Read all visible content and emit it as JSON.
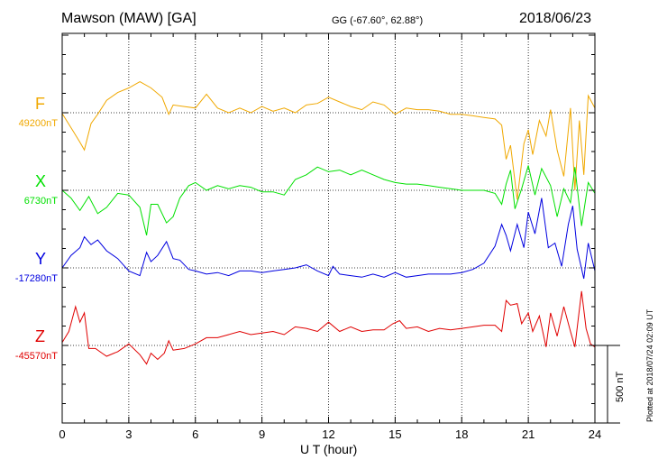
{
  "header": {
    "station": "Mawson (MAW)  [GA]",
    "coords": "GG (-67.60°,  62.88°)",
    "date": "2018/06/23"
  },
  "footer_note": "Plotted at 2018/07/24 02:09 UT",
  "scale_bar": {
    "label": "500 nT",
    "value_nT": 500
  },
  "colors": {
    "F": "#f0a800",
    "X": "#00e000",
    "Y": "#0000e0",
    "Z": "#e00000",
    "axis": "#000000"
  },
  "chart_data": {
    "type": "line",
    "title": "Mawson (MAW)  [GA]",
    "xlabel": "U T (hour)",
    "ylabel": "",
    "xlim": [
      0,
      24
    ],
    "x_ticks": [
      0,
      3,
      6,
      9,
      12,
      15,
      18,
      21,
      24
    ],
    "x_tick_labels": [
      "0",
      "3",
      "6",
      "9",
      "12",
      "15",
      "18",
      "21",
      "24"
    ],
    "grid": true,
    "nT_per_division": 500,
    "series": [
      {
        "name": "F",
        "baseline_label": "49200nT",
        "baseline_nT": 49200,
        "x": [
          0,
          0.5,
          0.8,
          1,
          1.3,
          1.6,
          2,
          2.5,
          3,
          3.5,
          4,
          4.5,
          4.8,
          5,
          5.5,
          6,
          6.5,
          7,
          7.5,
          8,
          8.5,
          9,
          9.5,
          10,
          10.5,
          11,
          11.5,
          12,
          12.5,
          13,
          13.5,
          14,
          14.5,
          15,
          15.5,
          16,
          16.5,
          17,
          17.5,
          18,
          18.5,
          19,
          19.5,
          19.8,
          20,
          20.2,
          20.5,
          20.8,
          21,
          21.2,
          21.5,
          21.8,
          22,
          22.3,
          22.6,
          22.9,
          23.1,
          23.3,
          23.5,
          23.7,
          24
        ],
        "y": [
          49195,
          49080,
          49010,
          48960,
          49130,
          49190,
          49280,
          49330,
          49360,
          49400,
          49360,
          49300,
          49190,
          49250,
          49240,
          49230,
          49320,
          49230,
          49200,
          49230,
          49200,
          49240,
          49210,
          49230,
          49200,
          49250,
          49260,
          49300,
          49270,
          49240,
          49220,
          49270,
          49250,
          49190,
          49230,
          49220,
          49220,
          49210,
          49190,
          49190,
          49180,
          49170,
          49160,
          49120,
          48900,
          48990,
          48640,
          49000,
          49090,
          48930,
          49150,
          49050,
          49220,
          48960,
          48790,
          49230,
          48700,
          49150,
          48800,
          49310,
          49230
        ]
      },
      {
        "name": "X",
        "baseline_label": "6730nT",
        "baseline_nT": 6730,
        "x": [
          0,
          0.4,
          0.8,
          1.2,
          1.6,
          2,
          2.5,
          3,
          3.5,
          3.8,
          4,
          4.3,
          4.7,
          5,
          5.3,
          5.7,
          6,
          6.5,
          7,
          7.5,
          8,
          8.5,
          9,
          9.5,
          10,
          10.5,
          11,
          11.5,
          12,
          12.5,
          13,
          13.5,
          14,
          14.5,
          15,
          15.5,
          16,
          16.5,
          17,
          17.5,
          18,
          18.5,
          19,
          19.5,
          19.8,
          20,
          20.2,
          20.4,
          20.7,
          21,
          21.3,
          21.6,
          22,
          22.3,
          22.6,
          22.9,
          23.1,
          23.4,
          23.7,
          24
        ],
        "y": [
          6730,
          6680,
          6600,
          6690,
          6580,
          6620,
          6710,
          6700,
          6620,
          6440,
          6640,
          6640,
          6520,
          6560,
          6680,
          6760,
          6780,
          6730,
          6760,
          6740,
          6760,
          6750,
          6720,
          6720,
          6700,
          6800,
          6830,
          6880,
          6850,
          6860,
          6830,
          6860,
          6830,
          6800,
          6780,
          6770,
          6770,
          6760,
          6750,
          6740,
          6730,
          6730,
          6730,
          6710,
          6640,
          6770,
          6860,
          6610,
          6740,
          6890,
          6700,
          6870,
          6760,
          6560,
          6740,
          6650,
          6880,
          6500,
          6780,
          6710
        ]
      },
      {
        "name": "Y",
        "baseline_label": "-17280nT",
        "baseline_nT": -17280,
        "x": [
          0,
          0.4,
          0.8,
          1,
          1.3,
          1.6,
          2,
          2.5,
          3,
          3.5,
          3.8,
          4,
          4.3,
          4.7,
          5,
          5.3,
          5.7,
          6,
          6.5,
          7,
          7.5,
          8,
          8.5,
          9,
          9.5,
          10,
          10.5,
          11,
          11.5,
          12,
          12.2,
          12.5,
          13,
          13.5,
          14,
          14.5,
          15,
          15.5,
          16,
          16.5,
          17,
          17.5,
          18,
          18.5,
          19,
          19.5,
          19.8,
          20,
          20.2,
          20.5,
          20.8,
          21,
          21.3,
          21.6,
          21.9,
          22.2,
          22.5,
          22.8,
          23,
          23.2,
          23.5,
          23.7,
          24
        ],
        "y": [
          -17280,
          -17200,
          -17150,
          -17080,
          -17130,
          -17100,
          -17170,
          -17220,
          -17300,
          -17330,
          -17180,
          -17240,
          -17200,
          -17110,
          -17220,
          -17230,
          -17290,
          -17300,
          -17320,
          -17310,
          -17330,
          -17300,
          -17300,
          -17310,
          -17300,
          -17290,
          -17280,
          -17260,
          -17300,
          -17330,
          -17270,
          -17320,
          -17330,
          -17340,
          -17320,
          -17340,
          -17310,
          -17340,
          -17330,
          -17320,
          -17320,
          -17320,
          -17310,
          -17290,
          -17250,
          -17140,
          -17000,
          -17070,
          -17170,
          -17000,
          -17150,
          -16920,
          -17060,
          -16830,
          -17150,
          -17120,
          -17270,
          -17000,
          -16880,
          -17160,
          -17350,
          -17120,
          -17300
        ]
      },
      {
        "name": "Z",
        "baseline_label": "-45570nT",
        "baseline_nT": -45570,
        "x": [
          0,
          0.3,
          0.6,
          0.8,
          1,
          1.2,
          1.5,
          1.8,
          2,
          2.5,
          3,
          3.5,
          3.8,
          4,
          4.3,
          4.6,
          4.8,
          5,
          5.5,
          6,
          6.5,
          7,
          7.5,
          8,
          8.5,
          9,
          9.5,
          10,
          10.5,
          11,
          11.5,
          12,
          12.5,
          13,
          13.5,
          14,
          14.5,
          14.9,
          15.2,
          15.5,
          16,
          16.5,
          17,
          17.5,
          18,
          18.5,
          19,
          19.5,
          19.8,
          20,
          20.2,
          20.5,
          20.7,
          21,
          21.2,
          21.5,
          21.8,
          22,
          22.3,
          22.6,
          22.9,
          23.1,
          23.4,
          23.6,
          23.8,
          24
        ],
        "y": [
          -45550,
          -45480,
          -45320,
          -45420,
          -45360,
          -45590,
          -45590,
          -45620,
          -45640,
          -45610,
          -45560,
          -45630,
          -45690,
          -45620,
          -45660,
          -45620,
          -45540,
          -45600,
          -45590,
          -45560,
          -45520,
          -45520,
          -45500,
          -45480,
          -45500,
          -45490,
          -45480,
          -45500,
          -45450,
          -45460,
          -45480,
          -45420,
          -45480,
          -45450,
          -45480,
          -45470,
          -45470,
          -45430,
          -45410,
          -45460,
          -45450,
          -45480,
          -45460,
          -45470,
          -45460,
          -45450,
          -45440,
          -45440,
          -45480,
          -45280,
          -45310,
          -45300,
          -45430,
          -45360,
          -45480,
          -45380,
          -45580,
          -45360,
          -45510,
          -45320,
          -45480,
          -45580,
          -45220,
          -45460,
          -45560,
          -45580
        ]
      }
    ]
  }
}
